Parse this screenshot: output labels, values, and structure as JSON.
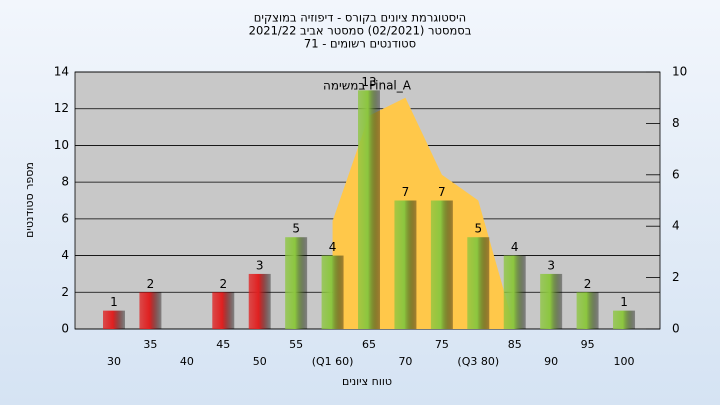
{
  "chart_data": {
    "type": "bar",
    "title": [
      "היסטוגרמת ציונים בקורס - דיפוזיה במוצקים",
      "בסמסטר  (02/2021)  סמסטר אביב 2021/22",
      "סטודנטים רשומים - 71"
    ],
    "y_label": "מספר סטודנטים",
    "x_label": "טווח ציונים",
    "annotation": "Final_A במשימה",
    "categories": [
      "30",
      "35",
      "40",
      "45",
      "50",
      "55",
      "(Q1 60)",
      "65",
      "70",
      "75",
      "(Q3 80)",
      "85",
      "90",
      "95",
      "100"
    ],
    "series": [
      {
        "values": [
          1,
          2,
          null,
          2,
          3,
          5,
          4,
          13,
          7,
          7,
          5,
          4,
          3,
          2,
          1
        ],
        "colors": [
          "#e02020",
          "#e02020",
          "#e02020",
          "#e02020",
          "#e02020",
          "#8cc63f",
          "#8cc63f",
          "#8cc63f",
          "#8cc63f",
          "#8cc63f",
          "#8cc63f",
          "#8cc63f",
          "#8cc63f",
          "#8cc63f",
          "#8cc63f"
        ]
      },
      {
        "type": "area",
        "axis": "y2",
        "color": "#ffc84a",
        "values": [
          null,
          null,
          null,
          null,
          null,
          null,
          4.2,
          8.3,
          9.0,
          6.0,
          5.0,
          0,
          null,
          null,
          null
        ]
      }
    ],
    "ylim": [
      0,
      14
    ],
    "yticks": [
      0,
      2,
      4,
      6,
      8,
      10,
      12,
      14
    ],
    "y2lim": [
      0,
      10
    ],
    "y2ticks": [
      0,
      2,
      4,
      6,
      8,
      10
    ],
    "grid": true
  }
}
